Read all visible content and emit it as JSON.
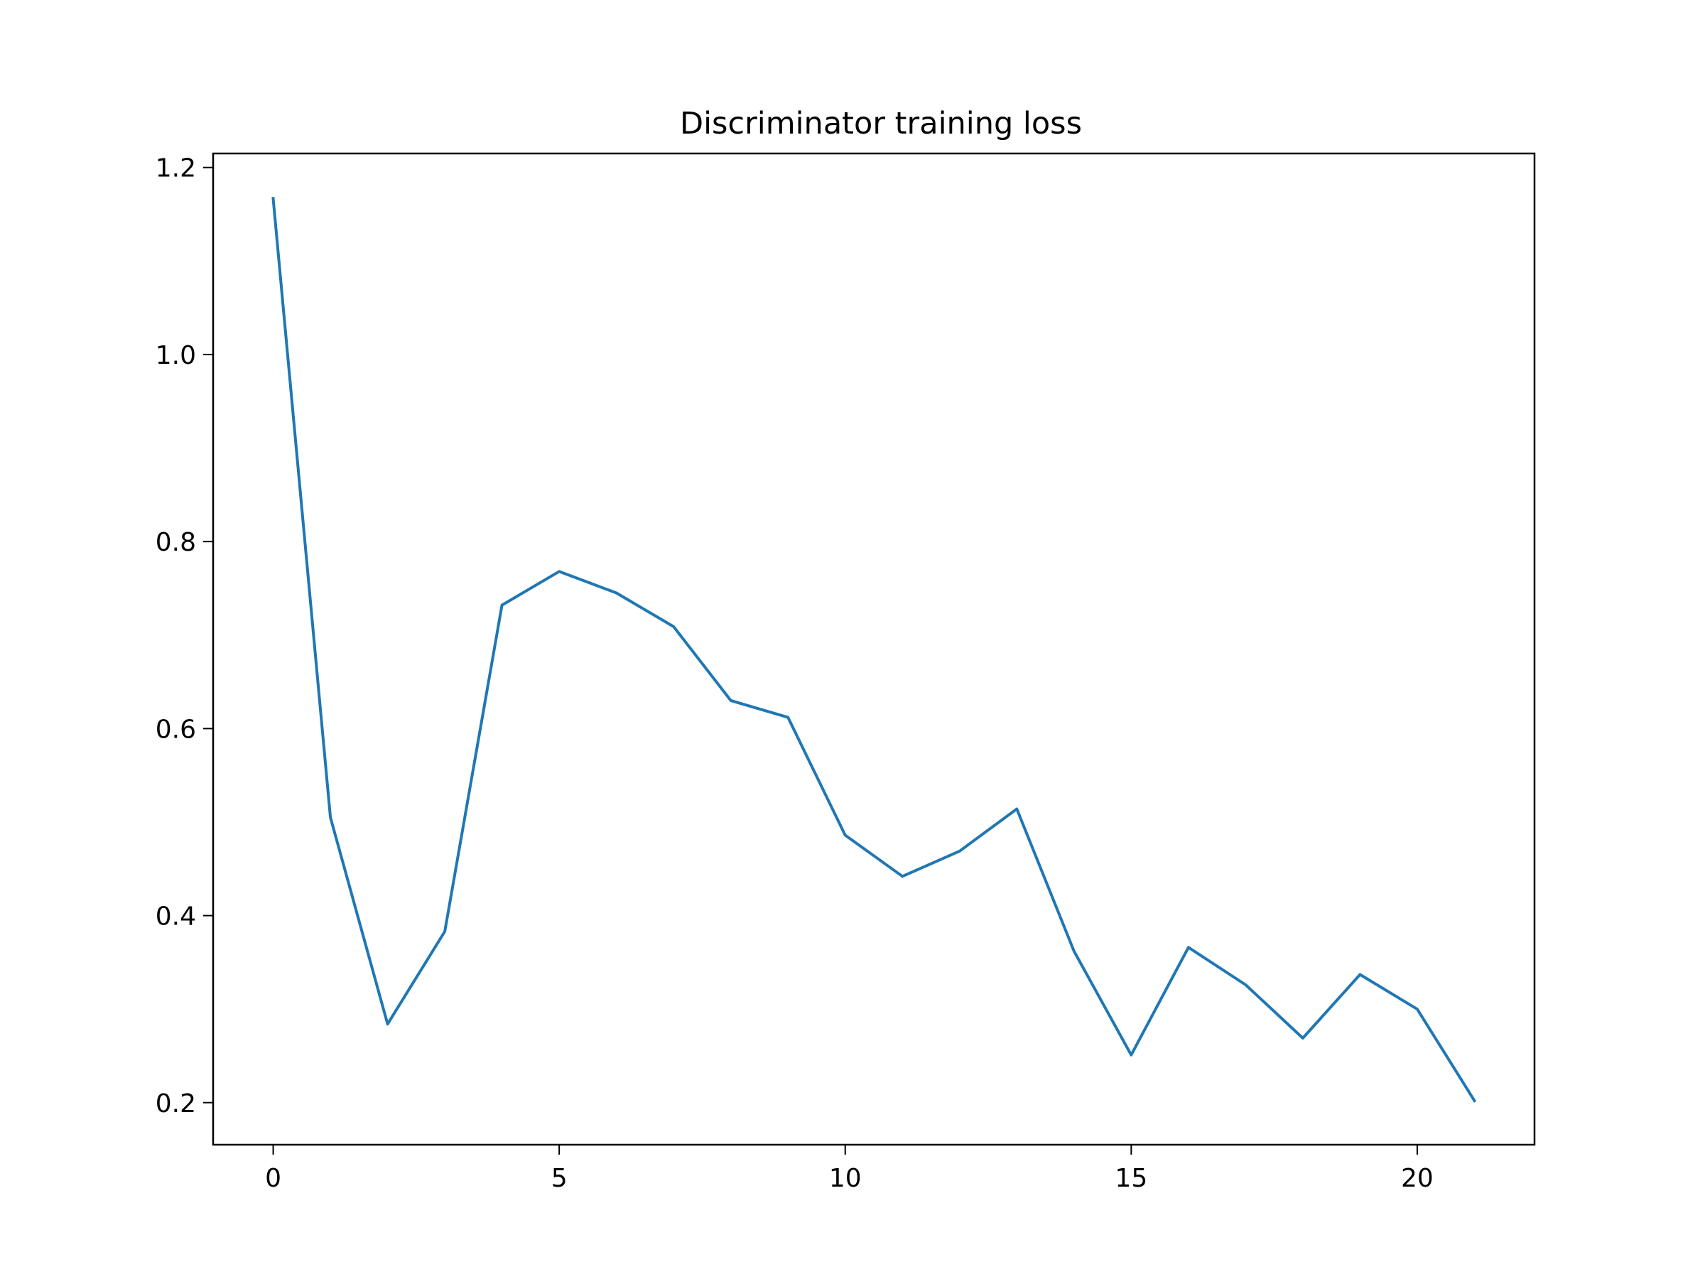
{
  "chart_data": {
    "type": "line",
    "title": "Discriminator training loss",
    "xlabel": "",
    "ylabel": "",
    "xlim": [
      -1.05,
      22.05
    ],
    "ylim": [
      0.155,
      1.215
    ],
    "xticks": [
      0,
      5,
      10,
      15,
      20
    ],
    "xtick_labels": [
      "0",
      "5",
      "10",
      "15",
      "20"
    ],
    "yticks": [
      0.2,
      0.4,
      0.6,
      0.8,
      1.0,
      1.2
    ],
    "ytick_labels": [
      "0.2",
      "0.4",
      "0.6",
      "0.8",
      "1.0",
      "1.2"
    ],
    "grid": false,
    "legend": "none",
    "series": [
      {
        "color": "#1f77b4",
        "x": [
          0,
          1,
          2,
          3,
          4,
          5,
          6,
          7,
          8,
          9,
          10,
          11,
          12,
          13,
          14,
          15,
          16,
          17,
          18,
          19,
          20,
          21
        ],
        "y": [
          1.167,
          0.505,
          0.284,
          0.383,
          0.732,
          0.768,
          0.745,
          0.709,
          0.63,
          0.612,
          0.486,
          0.442,
          0.469,
          0.514,
          0.362,
          0.251,
          0.366,
          0.326,
          0.269,
          0.337,
          0.3,
          0.202
        ]
      }
    ]
  }
}
